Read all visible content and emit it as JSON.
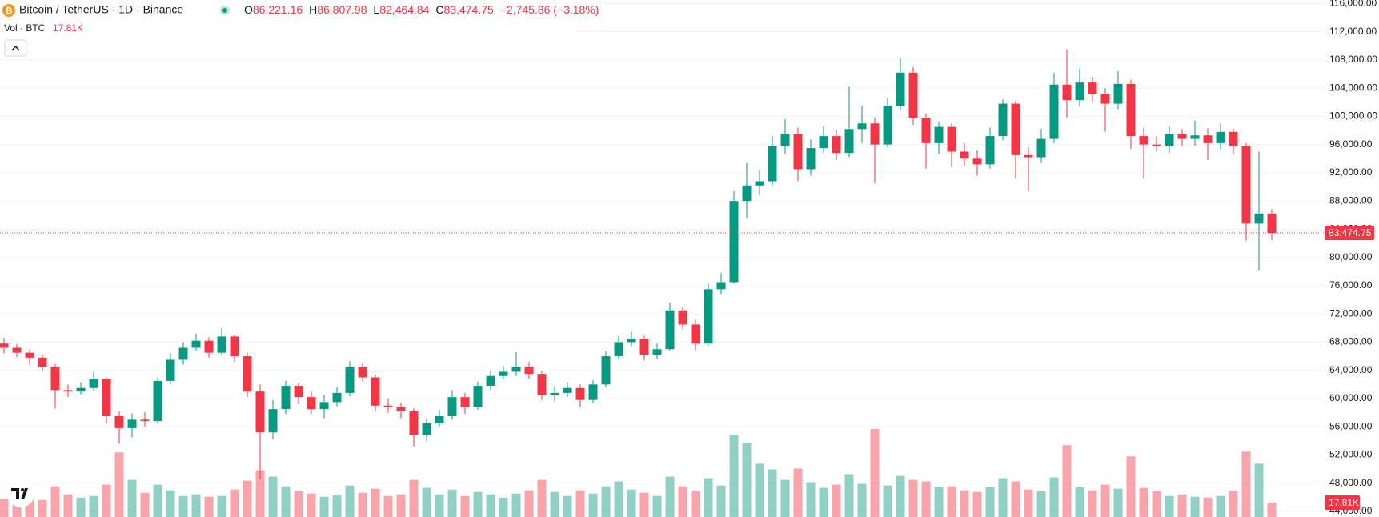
{
  "chart_data": {
    "type": "candlestick",
    "legend": {
      "symbol": "Bitcoin / TetherUS · 1D · Binance",
      "o_key": "O",
      "open": "86,221.16",
      "h_key": "H",
      "high": "86,807.98",
      "l_key": "L",
      "low": "82,464.84",
      "c_key": "C",
      "close": "83,474.75",
      "change": "−2,745.86 (−3.18%)",
      "volume_title": "Vol · BTC",
      "volume": "17.81K"
    },
    "up_color": "#089981",
    "down_color": "#f23645",
    "grid": true,
    "ylim": [
      43200,
      116500
    ],
    "yticks": [
      {
        "value": 44000,
        "label": "44,000.00"
      },
      {
        "value": 48000,
        "label": "48,000.00"
      },
      {
        "value": 52000,
        "label": "52,000.00"
      },
      {
        "value": 56000,
        "label": "56,000.00"
      },
      {
        "value": 60000,
        "label": "60,000.00"
      },
      {
        "value": 64000,
        "label": "64,000.00"
      },
      {
        "value": 68000,
        "label": "68,000.00"
      },
      {
        "value": 72000,
        "label": "72,000.00"
      },
      {
        "value": 76000,
        "label": "76,000.00"
      },
      {
        "value": 80000,
        "label": "80,000.00"
      },
      {
        "value": 84000,
        "label": "84,000.00"
      },
      {
        "value": 88000,
        "label": "88,000.00"
      },
      {
        "value": 92000,
        "label": "92,000.00"
      },
      {
        "value": 96000,
        "label": "96,000.00"
      },
      {
        "value": 100000,
        "label": "100,000.00"
      },
      {
        "value": 104000,
        "label": "104,000.00"
      },
      {
        "value": 108000,
        "label": "108,000.00"
      },
      {
        "value": 112000,
        "label": "112,000.00"
      },
      {
        "value": 116000,
        "label": "116,000.00"
      }
    ],
    "volume_lim": [
      0,
      640000
    ],
    "open": [
      67800,
      67200,
      66500,
      65800,
      64500,
      61200,
      61000,
      61500,
      62800,
      57500,
      55800,
      57000,
      56800,
      62500,
      65500,
      67200,
      68200,
      66500,
      68800,
      66000,
      61000,
      55200,
      58500,
      61800,
      60200,
      58500,
      59500,
      60800,
      64500,
      63000,
      59000,
      58800,
      58200,
      54800,
      56500,
      57500,
      60200,
      58800,
      61800,
      63200,
      63800,
      64500,
      63500,
      60500,
      60800,
      61500,
      59800,
      62000,
      66000,
      68000,
      68500,
      66200,
      67000,
      72500,
      70500,
      67800,
      75500,
      76500,
      88000,
      90200,
      90800,
      95800,
      97500,
      92500,
      95500,
      97200,
      94800,
      98200,
      99000,
      96000,
      101500,
      106200,
      99800,
      96200,
      98500,
      95000,
      94000,
      93200,
      97200,
      101800,
      94500,
      94200,
      96800,
      104500,
      102300,
      104800,
      103200,
      101800,
      104600,
      97200,
      96000,
      95800,
      97500,
      96800,
      97300,
      96200,
      97800,
      95800,
      84800,
      86221.16
    ],
    "high": [
      68600,
      67700,
      67000,
      66200,
      64900,
      62000,
      62300,
      63800,
      63000,
      58200,
      57900,
      58100,
      63000,
      66400,
      68000,
      69200,
      68700,
      70000,
      69000,
      66500,
      62000,
      59800,
      62500,
      62200,
      61000,
      60500,
      61600,
      65300,
      65000,
      63400,
      60000,
      59400,
      58600,
      57200,
      58400,
      61200,
      60800,
      62400,
      64000,
      64600,
      66600,
      65200,
      63900,
      61800,
      62300,
      62000,
      62600,
      66700,
      68900,
      69500,
      68900,
      67800,
      73600,
      73000,
      71200,
      76300,
      77800,
      89400,
      93400,
      92400,
      97200,
      99600,
      98400,
      96700,
      98600,
      98000,
      104200,
      101500,
      99800,
      102600,
      108300,
      107000,
      100400,
      99300,
      99000,
      96200,
      95200,
      98400,
      102400,
      102200,
      95600,
      98200,
      106200,
      109500,
      106800,
      105600,
      104000,
      106400,
      105200,
      98400,
      97200,
      98600,
      98200,
      99400,
      98300,
      99000,
      98200,
      96200,
      95000,
      86807.98
    ],
    "low": [
      66400,
      65900,
      64800,
      63900,
      58600,
      60200,
      60600,
      61100,
      56500,
      53600,
      54500,
      56000,
      56500,
      62000,
      64800,
      66800,
      65800,
      66200,
      65200,
      60200,
      48600,
      54200,
      57800,
      59200,
      57800,
      57200,
      58900,
      60300,
      62400,
      58200,
      58000,
      57200,
      53200,
      54000,
      56000,
      57000,
      57800,
      58400,
      61200,
      62800,
      63200,
      62800,
      59800,
      59600,
      60200,
      58800,
      59400,
      61600,
      65600,
      67400,
      65400,
      65600,
      66800,
      69800,
      66800,
      67500,
      74800,
      76300,
      85600,
      88800,
      90200,
      94600,
      90800,
      91600,
      94800,
      93800,
      94200,
      96200,
      90500,
      95600,
      100800,
      98800,
      92600,
      94600,
      92800,
      93000,
      91600,
      92600,
      96600,
      91200,
      89400,
      93400,
      96200,
      99800,
      101400,
      102000,
      97800,
      101000,
      95400,
      91200,
      95000,
      94800,
      95800,
      95800,
      93800,
      95400,
      94600,
      82400,
      78200,
      82464.84
    ],
    "close": [
      67200,
      66500,
      65800,
      64500,
      61200,
      61000,
      61500,
      62800,
      57500,
      55800,
      57000,
      56800,
      62500,
      65500,
      67200,
      68200,
      66500,
      68800,
      66000,
      61000,
      55200,
      58500,
      61800,
      60200,
      58500,
      59500,
      60800,
      64500,
      63000,
      59000,
      58800,
      58200,
      54800,
      56500,
      57500,
      60200,
      58800,
      61800,
      63200,
      63800,
      64500,
      63500,
      60500,
      60800,
      61500,
      59800,
      62000,
      66000,
      68000,
      68500,
      66200,
      67000,
      72500,
      70500,
      67800,
      75500,
      76500,
      88000,
      90200,
      90800,
      95800,
      97500,
      92500,
      95500,
      97200,
      94800,
      98200,
      99000,
      96000,
      101500,
      106200,
      99800,
      96200,
      98500,
      95000,
      94000,
      93200,
      97200,
      101800,
      94500,
      94200,
      96800,
      104500,
      102300,
      104800,
      103200,
      101800,
      104600,
      97200,
      96000,
      95800,
      97500,
      96800,
      97300,
      96200,
      97800,
      95800,
      84800,
      86221.16,
      83474.75
    ],
    "volume": [
      22000,
      18000,
      24000,
      21000,
      38000,
      28000,
      24000,
      26000,
      40000,
      80000,
      46000,
      30000,
      40000,
      33000,
      26000,
      28000,
      25000,
      26000,
      34000,
      45000,
      58000,
      50000,
      38000,
      32000,
      29000,
      25000,
      27000,
      39000,
      30000,
      35000,
      26000,
      28000,
      46000,
      36000,
      28000,
      34000,
      26000,
      31000,
      28000,
      24000,
      29000,
      33000,
      46000,
      31000,
      26000,
      33000,
      29000,
      38000,
      44000,
      34000,
      30000,
      26000,
      50000,
      38000,
      32000,
      48000,
      39000,
      102000,
      92000,
      66000,
      59000,
      46000,
      60000,
      43000,
      36000,
      40000,
      53000,
      41000,
      109000,
      39000,
      51000,
      46000,
      44000,
      37000,
      38000,
      33000,
      31000,
      37000,
      48000,
      44000,
      34000,
      32000,
      49000,
      89000,
      37000,
      33000,
      40000,
      35000,
      75000,
      36000,
      32000,
      26000,
      28000,
      25000,
      24000,
      26000,
      32000,
      81000,
      66000,
      17810
    ]
  }
}
